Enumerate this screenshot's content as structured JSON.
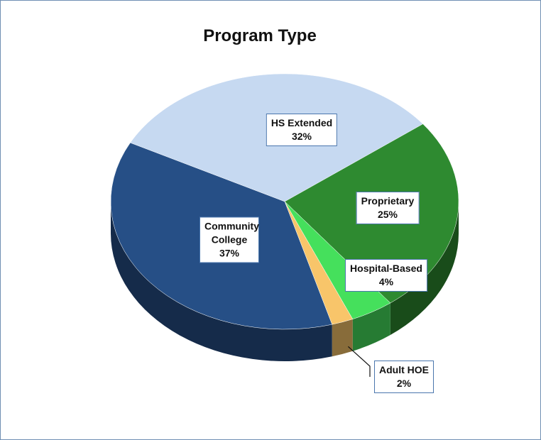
{
  "chart_data": {
    "type": "pie",
    "title": "Program Type",
    "categories": [
      "HS Extended",
      "Proprietary",
      "Hospital-Based",
      "Adult HOE",
      "Community College"
    ],
    "values": [
      32,
      25,
      4,
      2,
      37
    ],
    "value_labels": [
      "32%",
      "25%",
      "4%",
      "2%",
      "37%"
    ],
    "colors": [
      "#c6d9f1",
      "#2e8a30",
      "#45e05c",
      "#f8c56a",
      "#264f86"
    ]
  }
}
